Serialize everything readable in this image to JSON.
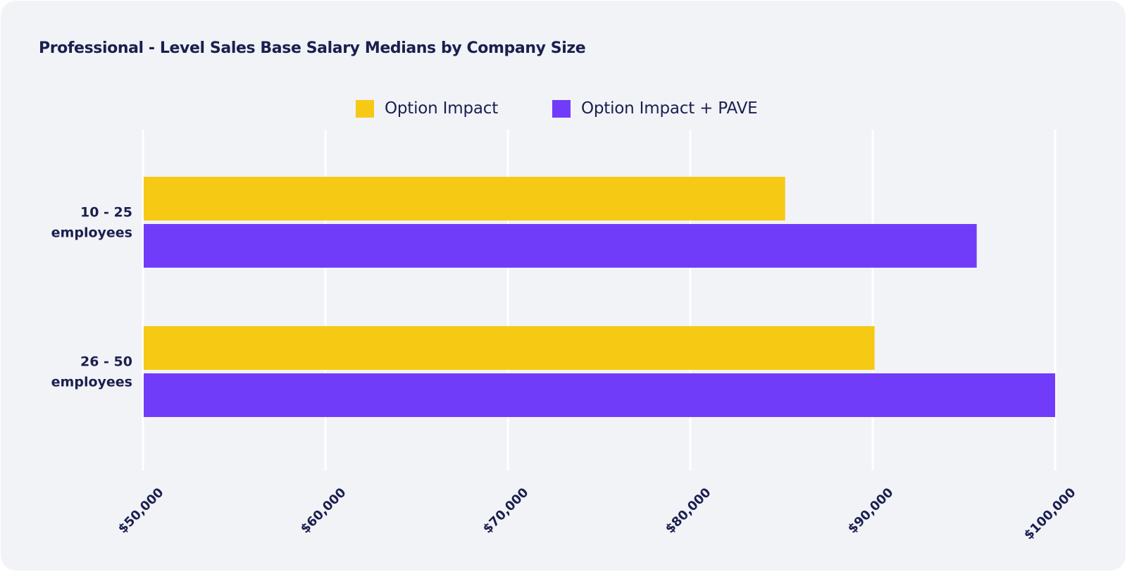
{
  "chart_data": {
    "type": "bar",
    "orientation": "horizontal",
    "title": "Professional - Level Sales Base Salary Medians by Company Size",
    "categories": [
      "10 - 25 employees",
      "26 - 50 employees"
    ],
    "category_label_lines": [
      [
        "10 - 25",
        "employees"
      ],
      [
        "26 - 50",
        "employees"
      ]
    ],
    "series": [
      {
        "name": "Option Impact",
        "color": "#f6c914",
        "values": [
          85200,
          90100
        ]
      },
      {
        "name": "Option Impact + PAVE",
        "color": "#713cf9",
        "values": [
          95700,
          100000
        ]
      }
    ],
    "xlim": [
      50000,
      100000
    ],
    "x_ticks": [
      50000,
      60000,
      70000,
      80000,
      90000,
      100000
    ],
    "x_tick_labels": [
      "$50,000",
      "$60,000",
      "$70,000",
      "$80,000",
      "$90,000",
      "$100,000"
    ],
    "xlabel": "",
    "ylabel": "",
    "grid": true,
    "legend_position": "top-center"
  },
  "colors": {
    "card_background": "#f2f3f7",
    "text": "#1a1f4e",
    "grid": "#ffffff"
  }
}
